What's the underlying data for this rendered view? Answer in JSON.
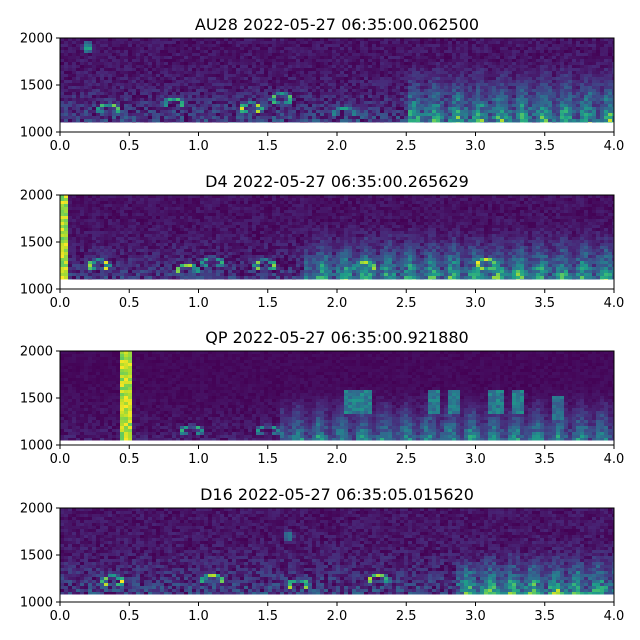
{
  "chart_data": [
    {
      "type": "heatmap",
      "title": "AU28 2022-05-27 06:35:00.062500",
      "xlim": [
        0.0,
        4.0
      ],
      "ylim": [
        1000,
        2000
      ],
      "xticks": [
        "0.0",
        "0.5",
        "1.0",
        "1.5",
        "2.0",
        "2.5",
        "3.0",
        "3.5",
        "4.0"
      ],
      "yticks": [
        "1000",
        "1500",
        "2000"
      ],
      "data_floor": 1100,
      "colormap": "viridis",
      "events": [
        {
          "x": 0.2,
          "y": 1900,
          "strength": 0.7,
          "kind": "blip"
        },
        {
          "x": 0.35,
          "y": 1240,
          "strength": 0.8,
          "kind": "arch"
        },
        {
          "x": 0.82,
          "y": 1300,
          "strength": 0.7,
          "kind": "arch"
        },
        {
          "x": 1.38,
          "y": 1250,
          "strength": 1.0,
          "kind": "arch"
        },
        {
          "x": 1.6,
          "y": 1350,
          "strength": 0.8,
          "kind": "arch"
        },
        {
          "x": 2.05,
          "y": 1200,
          "strength": 0.6,
          "kind": "arch"
        }
      ],
      "chorus": [
        {
          "start": 2.5,
          "end": 4.0,
          "top": 1800,
          "strength": 0.75
        }
      ],
      "background": 0.3
    },
    {
      "type": "heatmap",
      "title": "D4 2022-05-27 06:35:00.265629",
      "xlim": [
        0.0,
        4.0
      ],
      "ylim": [
        1000,
        2000
      ],
      "xticks": [
        "0.0",
        "0.5",
        "1.0",
        "1.5",
        "2.0",
        "2.5",
        "3.0",
        "3.5",
        "4.0"
      ],
      "yticks": [
        "1000",
        "1500",
        "2000"
      ],
      "data_floor": 1100,
      "colormap": "viridis",
      "events": [
        {
          "x": 0.02,
          "y": 1500,
          "strength": 1.0,
          "kind": "column"
        },
        {
          "x": 0.28,
          "y": 1250,
          "strength": 1.0,
          "kind": "arch"
        },
        {
          "x": 0.92,
          "y": 1200,
          "strength": 0.9,
          "kind": "arch"
        },
        {
          "x": 1.1,
          "y": 1280,
          "strength": 0.7,
          "kind": "arch"
        },
        {
          "x": 1.48,
          "y": 1250,
          "strength": 0.9,
          "kind": "arch"
        },
        {
          "x": 2.2,
          "y": 1230,
          "strength": 0.9,
          "kind": "arch"
        },
        {
          "x": 3.08,
          "y": 1260,
          "strength": 1.0,
          "kind": "arch"
        }
      ],
      "chorus": [
        {
          "start": 1.75,
          "end": 4.0,
          "top": 1700,
          "strength": 0.8
        }
      ],
      "background": 0.25
    },
    {
      "type": "heatmap",
      "title": "QP 2022-05-27 06:35:00.921880",
      "xlim": [
        0.0,
        4.0
      ],
      "ylim": [
        1000,
        2000
      ],
      "xticks": [
        "0.0",
        "0.5",
        "1.0",
        "1.5",
        "2.0",
        "2.5",
        "3.0",
        "3.5",
        "4.0"
      ],
      "yticks": [
        "1000",
        "1500",
        "2000"
      ],
      "data_floor": 1050,
      "colormap": "viridis",
      "events": [
        {
          "x": 0.47,
          "y": 1500,
          "strength": 1.0,
          "kind": "column"
        },
        {
          "x": 0.95,
          "y": 1150,
          "strength": 0.7,
          "kind": "arch"
        },
        {
          "x": 1.5,
          "y": 1150,
          "strength": 0.6,
          "kind": "arch"
        },
        {
          "x": 2.1,
          "y": 1450,
          "strength": 0.7,
          "kind": "block"
        },
        {
          "x": 2.2,
          "y": 1450,
          "strength": 0.7,
          "kind": "block"
        },
        {
          "x": 2.7,
          "y": 1450,
          "strength": 0.7,
          "kind": "block"
        },
        {
          "x": 2.85,
          "y": 1450,
          "strength": 0.7,
          "kind": "block"
        },
        {
          "x": 3.15,
          "y": 1450,
          "strength": 0.7,
          "kind": "block"
        },
        {
          "x": 3.3,
          "y": 1450,
          "strength": 0.7,
          "kind": "block"
        },
        {
          "x": 3.6,
          "y": 1400,
          "strength": 0.6,
          "kind": "block"
        }
      ],
      "chorus": [
        {
          "start": 1.6,
          "end": 4.0,
          "top": 1600,
          "strength": 0.7
        }
      ],
      "background": 0.12
    },
    {
      "type": "heatmap",
      "title": "D16 2022-05-27 06:35:05.015620",
      "xlim": [
        0.0,
        4.0
      ],
      "ylim": [
        1000,
        2000
      ],
      "xticks": [
        "0.0",
        "0.5",
        "1.0",
        "1.5",
        "2.0",
        "2.5",
        "3.0",
        "3.5",
        "4.0"
      ],
      "yticks": [
        "1000",
        "1500",
        "2000"
      ],
      "data_floor": 1080,
      "colormap": "viridis",
      "events": [
        {
          "x": 0.38,
          "y": 1220,
          "strength": 1.0,
          "kind": "arch"
        },
        {
          "x": 1.1,
          "y": 1230,
          "strength": 0.9,
          "kind": "arch"
        },
        {
          "x": 1.72,
          "y": 1180,
          "strength": 0.9,
          "kind": "arch"
        },
        {
          "x": 2.3,
          "y": 1230,
          "strength": 0.9,
          "kind": "arch"
        },
        {
          "x": 1.65,
          "y": 1700,
          "strength": 0.5,
          "kind": "blip"
        }
      ],
      "chorus": [
        {
          "start": 2.85,
          "end": 4.0,
          "top": 1600,
          "strength": 0.85
        }
      ],
      "background": 0.3
    }
  ]
}
